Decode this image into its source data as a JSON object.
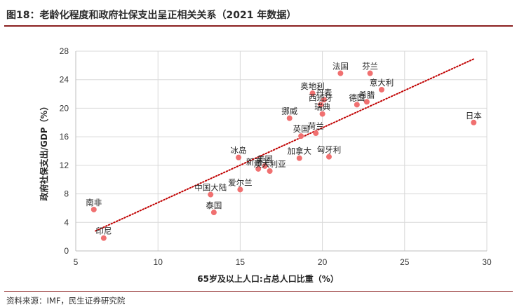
{
  "figure": {
    "title": "图18：老龄化程度和政府社保支出呈正相关关系（2021 年数据）",
    "source": "资料来源：IMF，民生证券研究院"
  },
  "colors": {
    "points": "#f07070",
    "trend": "#c00000",
    "grid": "#d9d9d9",
    "axis": "#bfbfbf",
    "title_rule": "#8a1f1f"
  },
  "chart_data": {
    "type": "scatter",
    "xlabel": "65岁及以上人口:占总人口比重（%）",
    "ylabel": "政府社保支出/GDP（%）",
    "xlim": [
      5,
      30
    ],
    "ylim": [
      0,
      28
    ],
    "xticks": [
      5,
      10,
      15,
      20,
      25,
      30
    ],
    "yticks": [
      0,
      4,
      8,
      12,
      16,
      20,
      24,
      28
    ],
    "grid": true,
    "trendline": {
      "style": "dotted",
      "x": [
        6.2,
        29.2
      ],
      "y": [
        2.8,
        26.9
      ]
    },
    "points": [
      {
        "label": "南非",
        "x": 6.1,
        "y": 5.8
      },
      {
        "label": "印尼",
        "x": 6.7,
        "y": 1.8
      },
      {
        "label": "中国大陆",
        "x": 13.2,
        "y": 7.9
      },
      {
        "label": "泰国",
        "x": 13.4,
        "y": 5.4
      },
      {
        "label": "冰岛",
        "x": 14.9,
        "y": 13.1
      },
      {
        "label": "爱尔兰",
        "x": 15.0,
        "y": 8.6
      },
      {
        "label": "新西兰",
        "x": 16.1,
        "y": 11.5
      },
      {
        "label": "美国",
        "x": 16.5,
        "y": 11.9
      },
      {
        "label": "澳大利亚",
        "x": 16.8,
        "y": 11.2
      },
      {
        "label": "挪威",
        "x": 18.0,
        "y": 18.6
      },
      {
        "label": "加拿大",
        "x": 18.6,
        "y": 13.0
      },
      {
        "label": "英国",
        "x": 18.7,
        "y": 16.1
      },
      {
        "label": "荷兰",
        "x": 19.6,
        "y": 16.5
      },
      {
        "label": "奥地利",
        "x": 19.4,
        "y": 22.1
      },
      {
        "label": "丹麦",
        "x": 20.1,
        "y": 21.2
      },
      {
        "label": "西班牙",
        "x": 19.9,
        "y": 20.5
      },
      {
        "label": "瑞典",
        "x": 20.0,
        "y": 19.2
      },
      {
        "label": "匈牙利",
        "x": 20.4,
        "y": 13.2
      },
      {
        "label": "法国",
        "x": 21.1,
        "y": 24.9
      },
      {
        "label": "德国",
        "x": 22.1,
        "y": 20.5
      },
      {
        "label": "芬兰",
        "x": 22.9,
        "y": 24.9
      },
      {
        "label": "希腊",
        "x": 22.7,
        "y": 20.9
      },
      {
        "label": "意大利",
        "x": 23.6,
        "y": 22.6
      },
      {
        "label": "日本",
        "x": 29.2,
        "y": 18.0
      }
    ]
  }
}
